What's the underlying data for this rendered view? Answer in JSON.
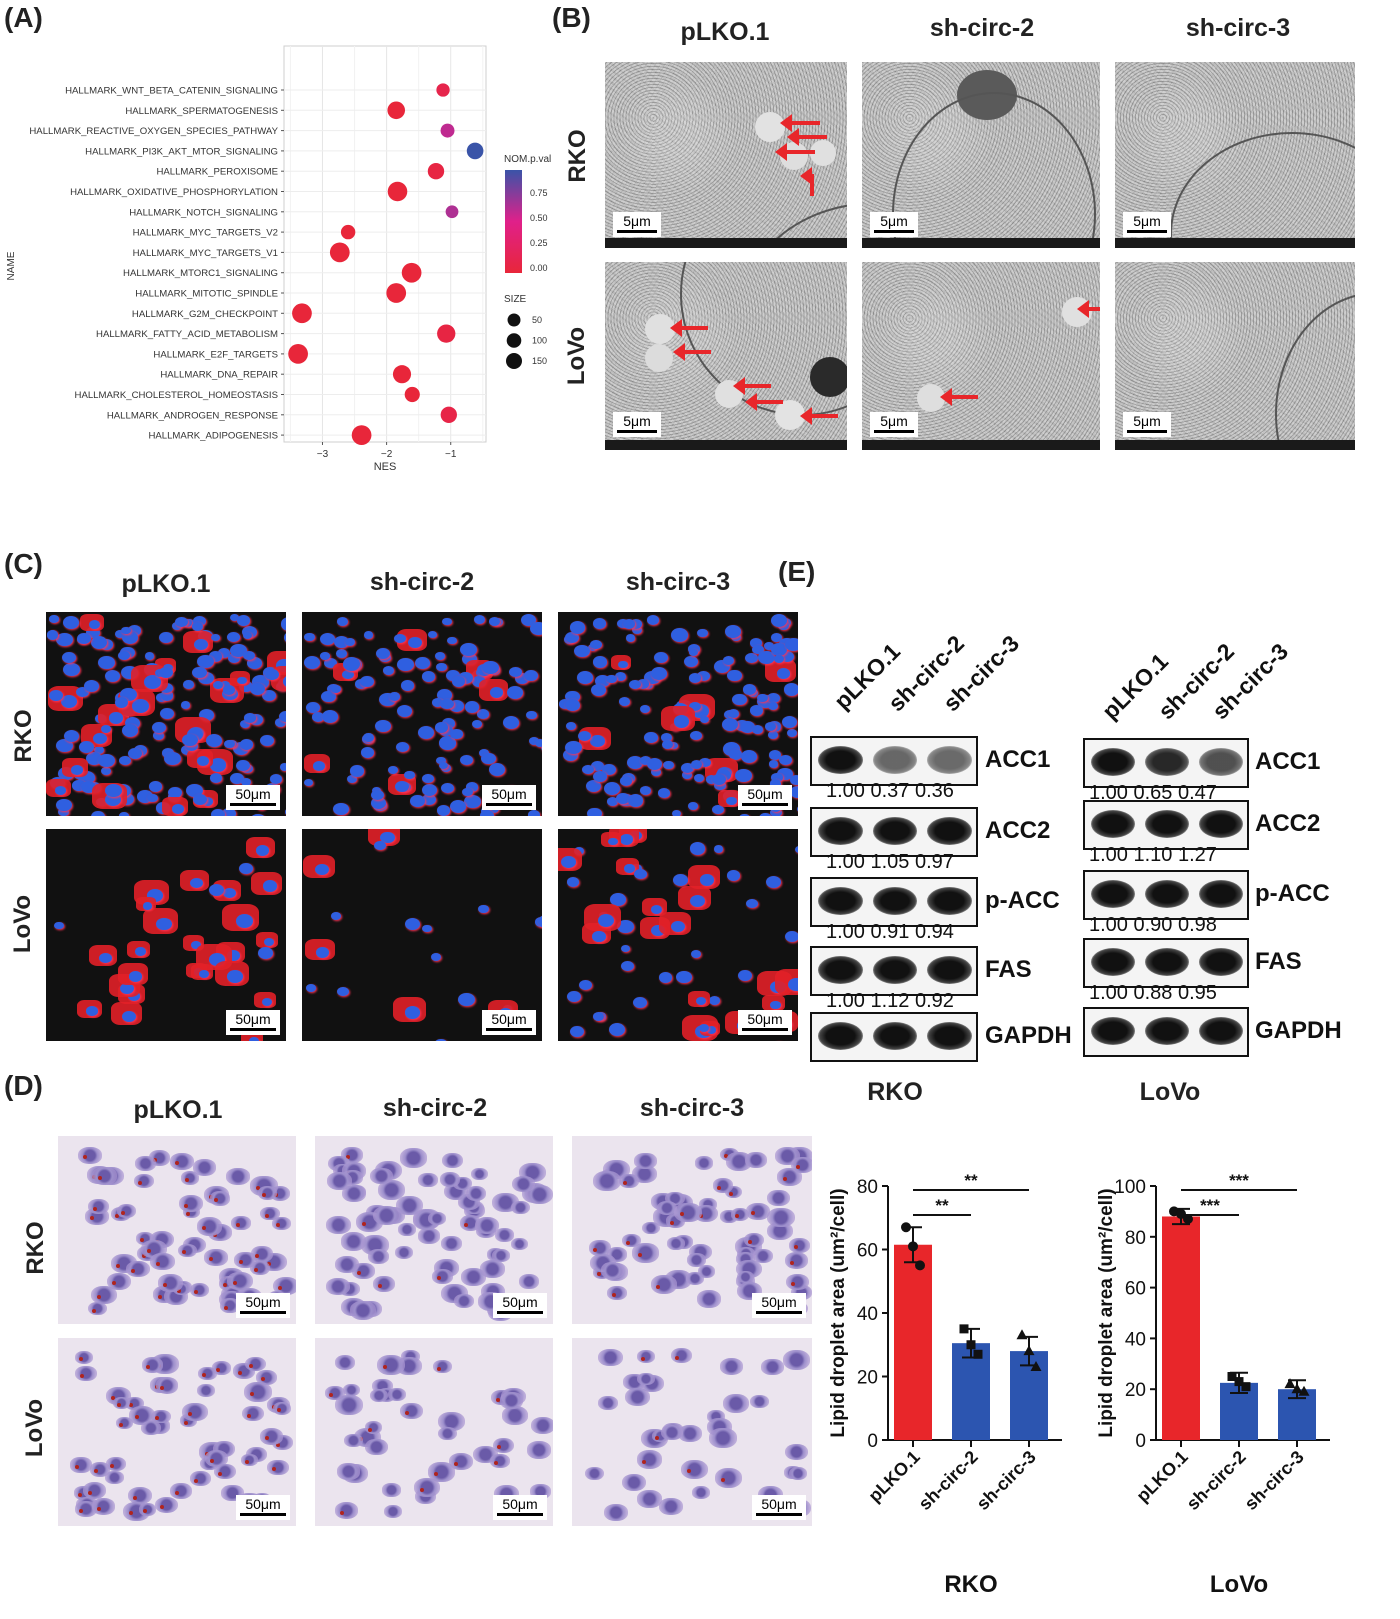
{
  "panels": {
    "a": "(A)",
    "b": "(B)",
    "c": "(C)",
    "d": "(D)",
    "e": "(E)"
  },
  "groups": [
    "pLKO.1",
    "sh-circ-2",
    "sh-circ-3"
  ],
  "cells": [
    "RKO",
    "LoVo"
  ],
  "scale": {
    "tem": "5μm",
    "micro": "50μm"
  },
  "gsea": {
    "ylabel": "NAME",
    "xlabel": "NES",
    "pathways": [
      {
        "name": "HALLMARK_WNT_BETA_CATENIN_SIGNALING",
        "nes": -1.12,
        "p": 0.1,
        "size": 40
      },
      {
        "name": "HALLMARK_SPERMATOGENESIS",
        "nes": -1.85,
        "p": 0.0,
        "size": 130
      },
      {
        "name": "HALLMARK_REACTIVE_OXYGEN_SPECIES_PATHWAY",
        "nes": -1.05,
        "p": 0.55,
        "size": 50
      },
      {
        "name": "HALLMARK_PI3K_AKT_MTOR_SIGNALING",
        "nes": -0.62,
        "p": 0.95,
        "size": 105
      },
      {
        "name": "HALLMARK_PEROXISOME",
        "nes": -1.23,
        "p": 0.05,
        "size": 100
      },
      {
        "name": "HALLMARK_OXIDATIVE_PHOSPHORYLATION",
        "nes": -1.83,
        "p": 0.0,
        "size": 190
      },
      {
        "name": "HALLMARK_NOTCH_SIGNALING",
        "nes": -0.98,
        "p": 0.6,
        "size": 32
      },
      {
        "name": "HALLMARK_MYC_TARGETS_V2",
        "nes": -2.6,
        "p": 0.0,
        "size": 58
      },
      {
        "name": "HALLMARK_MYC_TARGETS_V1",
        "nes": -2.73,
        "p": 0.0,
        "size": 195
      },
      {
        "name": "HALLMARK_MTORC1_SIGNALING",
        "nes": -1.61,
        "p": 0.0,
        "size": 195
      },
      {
        "name": "HALLMARK_MITOTIC_SPINDLE",
        "nes": -1.85,
        "p": 0.0,
        "size": 195
      },
      {
        "name": "HALLMARK_G2M_CHECKPOINT",
        "nes": -3.32,
        "p": 0.0,
        "size": 195
      },
      {
        "name": "HALLMARK_FATTY_ACID_METABOLISM",
        "nes": -1.07,
        "p": 0.05,
        "size": 150
      },
      {
        "name": "HALLMARK_E2F_TARGETS",
        "nes": -3.38,
        "p": 0.0,
        "size": 195
      },
      {
        "name": "HALLMARK_DNA_REPAIR",
        "nes": -1.76,
        "p": 0.0,
        "size": 145
      },
      {
        "name": "HALLMARK_CHOLESTEROL_HOMEOSTASIS",
        "nes": -1.6,
        "p": 0.0,
        "size": 72
      },
      {
        "name": "HALLMARK_ANDROGEN_RESPONSE",
        "nes": -1.03,
        "p": 0.08,
        "size": 98
      },
      {
        "name": "HALLMARK_ADIPOGENESIS",
        "nes": -2.39,
        "p": 0.0,
        "size": 195
      }
    ],
    "xticks": [
      "−3",
      "−2",
      "−1"
    ],
    "color_legend_title": "NOM.p.val",
    "color_ticks": [
      "0.75",
      "0.50",
      "0.25",
      "0.00"
    ],
    "size_legend_title": "SIZE",
    "size_ticks": [
      "50",
      "100",
      "150"
    ],
    "colors": {
      "low": "#e8263a",
      "mid": "#e0208a",
      "high": "#3a54a8"
    }
  },
  "western": {
    "rko": {
      "proteins": [
        "ACC1",
        "ACC2",
        "p-ACC",
        "FAS",
        "GAPDH"
      ],
      "quant": [
        [
          "1.00",
          "0.37",
          "0.36"
        ],
        [
          "1.00",
          "1.05",
          "0.97"
        ],
        [
          "1.00",
          "0.91",
          "0.94"
        ],
        [
          "1.00",
          "1.12",
          "0.92"
        ]
      ]
    },
    "lovo": {
      "proteins": [
        "ACC1",
        "ACC2",
        "p-ACC",
        "FAS",
        "GAPDH"
      ],
      "quant": [
        [
          "1.00",
          "0.65",
          "0.47"
        ],
        [
          "1.00",
          "1.10",
          "1.27"
        ],
        [
          "1.00",
          "0.90",
          "0.98"
        ],
        [
          "1.00",
          "0.88",
          "0.95"
        ]
      ]
    }
  },
  "chart_data": [
    {
      "type": "bar",
      "title": "RKO",
      "xlabel": "RKO",
      "ylabel": "Lipid droplet area (um²/cell)",
      "categories": [
        "pLKO.1",
        "sh-circ-2",
        "sh-circ-3"
      ],
      "values": [
        61.5,
        30.5,
        28
      ],
      "errors": [
        5.5,
        4.5,
        4.5
      ],
      "points": [
        [
          67,
          61,
          55
        ],
        [
          35,
          30,
          27
        ],
        [
          33,
          28,
          23
        ]
      ],
      "colors": [
        "#e8262a",
        "#2c55b0",
        "#2c55b0"
      ],
      "ylim": [
        0,
        80
      ],
      "yticks": [
        0,
        20,
        40,
        60,
        80
      ],
      "significance": [
        {
          "from": 0,
          "to": 1,
          "label": "**"
        },
        {
          "from": 0,
          "to": 2,
          "label": "**"
        }
      ]
    },
    {
      "type": "bar",
      "title": "LoVo",
      "xlabel": "LoVo",
      "ylabel": "Lipid droplet area (um²/cell)",
      "categories": [
        "pLKO.1",
        "sh-circ-2",
        "sh-circ-3"
      ],
      "values": [
        88,
        22.5,
        20
      ],
      "errors": [
        3,
        4,
        3.5
      ],
      "points": [
        [
          90,
          89,
          87
        ],
        [
          25,
          23,
          21
        ],
        [
          22,
          20,
          19
        ]
      ],
      "colors": [
        "#e8262a",
        "#2c55b0",
        "#2c55b0"
      ],
      "ylim": [
        0,
        100
      ],
      "yticks": [
        0,
        20,
        40,
        60,
        80,
        100
      ],
      "significance": [
        {
          "from": 0,
          "to": 1,
          "label": "***"
        },
        {
          "from": 0,
          "to": 2,
          "label": "***"
        }
      ]
    }
  ]
}
